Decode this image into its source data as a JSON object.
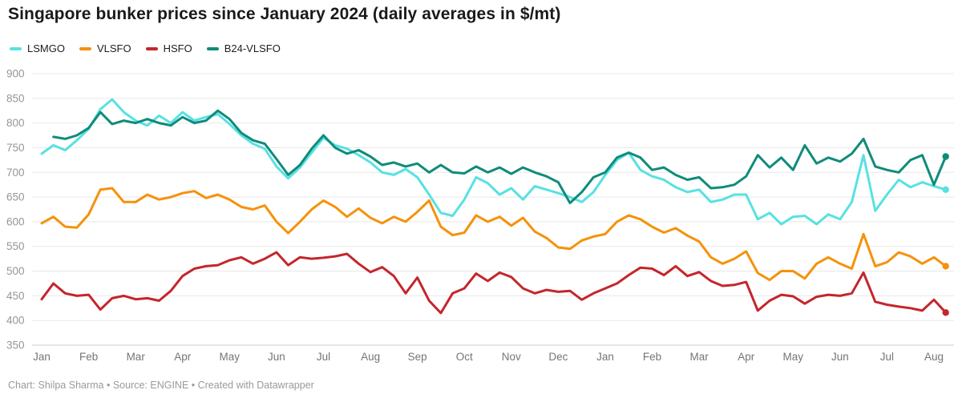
{
  "title": "Singapore bunker prices since January 2024 (daily averages in $/mt)",
  "footer": "Chart: Shilpa Sharma • Source: ENGINE • Created with Datawrapper",
  "colors": {
    "lsmgo": "#58e1e3",
    "vlsfo": "#f5920a",
    "hsfo": "#c4262c",
    "b24_vlsfo": "#0f8c79",
    "gridline": "#e8e8e8",
    "baseline": "#c8c8c8",
    "axis_text": "#969696",
    "month_text": "#757575"
  },
  "chart_data": {
    "type": "line",
    "title": "Singapore bunker prices since January 2024 (daily averages in $/mt)",
    "x_unit": "months (index 0 = Jan 2024, weekly sampling)",
    "x_step": 0.25,
    "x_tick_labels": [
      "Jan",
      "Feb",
      "Mar",
      "Apr",
      "May",
      "Jun",
      "Jul",
      "Aug",
      "Sep",
      "Oct",
      "Nov",
      "Dec",
      "Jan",
      "Feb",
      "Mar",
      "Apr",
      "May",
      "Jun",
      "Jul",
      "Aug"
    ],
    "y_ticks": [
      350,
      400,
      450,
      500,
      550,
      600,
      650,
      700,
      750,
      800,
      850,
      900
    ],
    "ylim": [
      350,
      900
    ],
    "grid": "horizontal",
    "legend_position": "top-left",
    "end_markers": true,
    "series": [
      {
        "name": "LSMGO",
        "color": "#58e1e3",
        "x_start": 0.0,
        "values": [
          738,
          755,
          745,
          765,
          788,
          828,
          848,
          822,
          805,
          795,
          815,
          800,
          822,
          805,
          812,
          818,
          798,
          775,
          758,
          748,
          712,
          688,
          710,
          740,
          770,
          755,
          748,
          735,
          720,
          700,
          695,
          707,
          690,
          655,
          618,
          612,
          645,
          690,
          678,
          655,
          668,
          645,
          672,
          665,
          658,
          650,
          640,
          660,
          695,
          725,
          740,
          705,
          692,
          685,
          670,
          660,
          665,
          640,
          645,
          655,
          655,
          605,
          618,
          595,
          610,
          612,
          595,
          615,
          605,
          640,
          735,
          622,
          655,
          685,
          670,
          680,
          672,
          665
        ]
      },
      {
        "name": "VLSFO",
        "color": "#f5920a",
        "x_start": 0.0,
        "values": [
          597,
          610,
          590,
          588,
          615,
          665,
          668,
          640,
          640,
          655,
          645,
          650,
          658,
          662,
          648,
          655,
          645,
          630,
          625,
          633,
          600,
          577,
          600,
          625,
          643,
          630,
          610,
          627,
          608,
          597,
          610,
          600,
          620,
          643,
          590,
          573,
          578,
          613,
          600,
          610,
          592,
          608,
          580,
          567,
          548,
          545,
          562,
          570,
          575,
          600,
          613,
          605,
          590,
          578,
          587,
          572,
          560,
          528,
          515,
          525,
          540,
          496,
          482,
          500,
          500,
          485,
          515,
          528,
          515,
          505,
          575,
          510,
          518,
          538,
          530,
          515,
          528,
          510
        ]
      },
      {
        "name": "HSFO",
        "color": "#c4262c",
        "x_start": 0.0,
        "values": [
          443,
          475,
          455,
          450,
          452,
          422,
          445,
          450,
          443,
          445,
          440,
          460,
          490,
          505,
          510,
          512,
          522,
          528,
          515,
          525,
          538,
          512,
          528,
          525,
          527,
          530,
          535,
          515,
          498,
          508,
          490,
          455,
          487,
          440,
          415,
          455,
          465,
          495,
          480,
          497,
          488,
          465,
          455,
          462,
          458,
          460,
          442,
          455,
          465,
          475,
          492,
          507,
          505,
          492,
          510,
          490,
          498,
          480,
          470,
          472,
          478,
          420,
          440,
          452,
          449,
          434,
          448,
          452,
          450,
          455,
          497,
          438,
          432,
          428,
          425,
          420,
          442,
          416
        ]
      },
      {
        "name": "B24-VLSFO",
        "color": "#0f8c79",
        "x_start": 0.25,
        "values": [
          772,
          768,
          775,
          790,
          822,
          798,
          805,
          800,
          808,
          800,
          795,
          812,
          800,
          805,
          825,
          808,
          780,
          765,
          758,
          727,
          695,
          715,
          748,
          775,
          750,
          738,
          745,
          732,
          715,
          720,
          712,
          718,
          700,
          715,
          700,
          698,
          712,
          700,
          710,
          697,
          710,
          700,
          692,
          680,
          638,
          660,
          690,
          700,
          730,
          740,
          730,
          705,
          710,
          695,
          685,
          690,
          668,
          670,
          675,
          692,
          735,
          710,
          730,
          705,
          755,
          718,
          730,
          722,
          738,
          768,
          712,
          705,
          700,
          725,
          735,
          675,
          732
        ]
      }
    ]
  }
}
